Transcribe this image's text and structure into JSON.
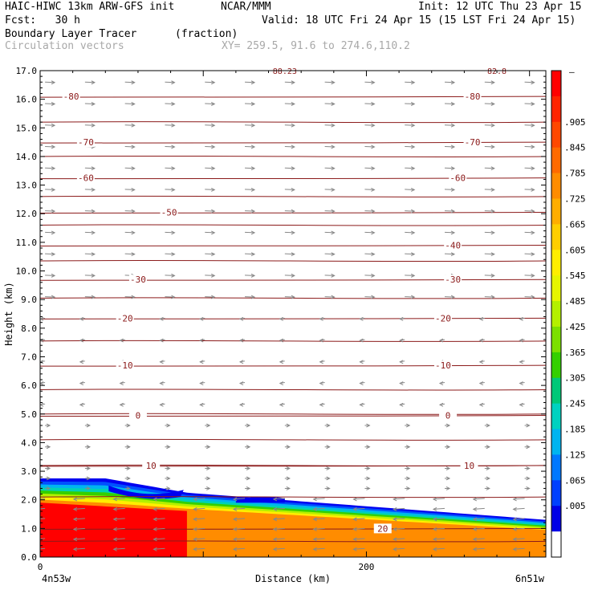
{
  "header": {
    "model": "HAIC-HIWC 13km ARW-GFS init",
    "org": "NCAR/MMM",
    "init": "Init: 12 UTC Thu 23 Apr 15",
    "fcst": "Fcst:   30 h",
    "valid": "Valid: 18 UTC Fri 24 Apr 15 (15 LST Fri 24 Apr 15)",
    "field": "Boundary Layer Tracer",
    "units": "(fraction)",
    "vectors": "Circulation vectors",
    "xy": "XY= 259.5, 91.6 to 274.6,110.2"
  },
  "chart_data": {
    "type": "cross-section",
    "ylabel": "Height (km)",
    "xlabel": "Distance (km)",
    "ylim": [
      0,
      17
    ],
    "yticks": [
      "0.0",
      "1.0",
      "2.0",
      "3.0",
      "4.0",
      "5.0",
      "6.0",
      "7.0",
      "8.0",
      "9.0",
      "10.0",
      "11.0",
      "12.0",
      "13.0",
      "14.0",
      "15.0",
      "16.0",
      "17.0"
    ],
    "xlim": [
      0,
      310
    ],
    "xticks": [
      {
        "v": 0,
        "label": "0"
      },
      {
        "v": 200,
        "label": "200"
      }
    ],
    "left_endpoint": "4n53w",
    "right_endpoint": "6n51w",
    "colorbar": {
      "top_label": "–",
      "labels": [
        ".905",
        ".845",
        ".785",
        ".725",
        ".665",
        ".605",
        ".545",
        ".485",
        ".425",
        ".365",
        ".305",
        ".245",
        ".185",
        ".125",
        ".065",
        ".005"
      ],
      "colors": [
        "#ff0000",
        "#ff2400",
        "#ff4800",
        "#ff6a00",
        "#ff8c00",
        "#ffad00",
        "#ffce00",
        "#ffee00",
        "#e6f500",
        "#b4f000",
        "#7ce000",
        "#34d000",
        "#00c878",
        "#00d2c0",
        "#00b4f0",
        "#0078ff",
        "#0040ff",
        "#0000e6",
        "#ffffff"
      ]
    },
    "temperature_contours": [
      {
        "value": 20,
        "label": "20",
        "h": 1.0,
        "label_xs": [
          210
        ]
      },
      {
        "value": 10,
        "label": "10",
        "h": 3.2,
        "label_xs": [
          68,
          263
        ]
      },
      {
        "value": 0,
        "label": "0",
        "h": 4.95,
        "label_xs": [
          60,
          250
        ]
      },
      {
        "value": -10,
        "label": "-10",
        "h": 6.7,
        "label_xs": [
          52,
          247
        ]
      },
      {
        "value": -20,
        "label": "-20",
        "h": 8.35,
        "label_xs": [
          52,
          247
        ]
      },
      {
        "value": -30,
        "label": "-30",
        "h": 9.7,
        "label_xs": [
          60,
          253
        ]
      },
      {
        "value": -40,
        "label": "-40",
        "h": 10.9,
        "label_xs": [
          253
        ]
      },
      {
        "value": -50,
        "label": "-50",
        "h": 12.05,
        "label_xs": [
          79
        ]
      },
      {
        "value": -60,
        "label": "-60",
        "h": 13.25,
        "label_xs": [
          28,
          256
        ]
      },
      {
        "value": -70,
        "label": "-70",
        "h": 14.5,
        "label_xs": [
          28,
          265
        ]
      },
      {
        "value": -80,
        "label": "-80",
        "h": 16.1,
        "label_xs": [
          19,
          265
        ]
      }
    ],
    "top_labels": [
      "88.23",
      "82.8"
    ],
    "extra_levels_h": [
      15.2,
      14.0,
      12.6,
      11.6,
      10.35,
      9.05,
      7.55,
      5.85,
      5.0,
      4.1,
      3.2,
      2.1,
      0.55
    ],
    "tracer": {
      "top_h": 2.75,
      "top_h_right": 1.3,
      "full_h_left": 1.9,
      "full_h_right": 0.9
    }
  }
}
